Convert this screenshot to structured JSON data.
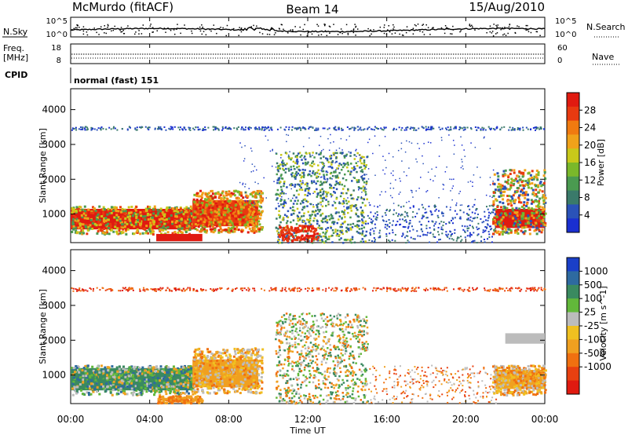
{
  "header": {
    "site": "McMurdo (fitACF)",
    "beam": "Beam 14",
    "date": "15/Aug/2010"
  },
  "top_panels": {
    "nsky_label": "N.Sky",
    "nsky_ticks": [
      "10^5",
      "10^0"
    ],
    "nsearch_label": "N.Search",
    "nsearch_ticks": [
      "10^5",
      "10^0"
    ],
    "freq_label_1": "Freq.",
    "freq_label_2": "[MHz]",
    "freq_ticks": [
      "18",
      "8"
    ],
    "nave_label": "Nave",
    "nave_ticks": [
      "60",
      "0"
    ],
    "cpid_label": "CPID",
    "cpid_text": "normal (fast) 151"
  },
  "colors": {
    "power_scale": [
      "#1a2fd0",
      "#2a52b8",
      "#3a7a6a",
      "#4a9a50",
      "#7ab82a",
      "#c8c81a",
      "#f0a21a",
      "#f07a10",
      "#e83a10",
      "#e01a10"
    ],
    "velocity_scale": [
      "#1a3fc8",
      "#2e6aa0",
      "#3a8a60",
      "#62b83a",
      "#bcbcbc",
      "#f0c020",
      "#f0a020",
      "#f07010",
      "#e84010",
      "#e01a10"
    ]
  },
  "chart_data": [
    {
      "type": "heatmap",
      "title": "Power",
      "xlabel": "",
      "ylabel": "Slant Range [km]",
      "xlim": [
        "00:00",
        "24:00"
      ],
      "x_ticks": [
        "00:00",
        "04:00",
        "08:00",
        "12:00",
        "16:00",
        "20:00",
        "00:00"
      ],
      "ylim": [
        180,
        4600
      ],
      "y_ticks": [
        1000,
        2000,
        3000,
        4000
      ],
      "colorbar": {
        "label": "Power [dB]",
        "ticks": [
          4,
          8,
          12,
          16,
          20,
          24,
          28
        ],
        "range": [
          0,
          32
        ]
      },
      "grid": false,
      "regions": [
        {
          "x": [
            "00:00",
            "06:10"
          ],
          "y": [
            520,
            1200
          ],
          "value": "~28 dB"
        },
        {
          "x": [
            "06:10",
            "09:30"
          ],
          "y": [
            620,
            1450
          ],
          "value": "~28 dB"
        },
        {
          "x": [
            "04:20",
            "06:40"
          ],
          "y": [
            200,
            450
          ],
          "value": "~28 dB"
        },
        {
          "x": [
            "10:20",
            "15:00"
          ],
          "y": [
            200,
            2800
          ],
          "value": "~8 dB"
        },
        {
          "x": [
            "21:30",
            "24:00"
          ],
          "y": [
            550,
            1200
          ],
          "value": "~28 dB"
        },
        {
          "x": [
            "00:00",
            "24:00"
          ],
          "y": [
            3450,
            3520
          ],
          "value": "~8 dB"
        }
      ]
    },
    {
      "type": "heatmap",
      "title": "Velocity",
      "xlabel": "Time UT",
      "ylabel": "Slant Range [km]",
      "xlim": [
        "00:00",
        "24:00"
      ],
      "x_ticks": [
        "00:00",
        "04:00",
        "08:00",
        "12:00",
        "16:00",
        "20:00",
        "00:00"
      ],
      "ylim": [
        180,
        4600
      ],
      "y_ticks": [
        1000,
        2000,
        3000,
        4000
      ],
      "colorbar": {
        "label": "Velocity [m s^-1]",
        "ticks": [
          1000,
          500,
          100,
          25,
          -25,
          -100,
          -500,
          -1000
        ]
      },
      "grid": false,
      "regions": [
        {
          "x": [
            "00:00",
            "06:10"
          ],
          "y": [
            520,
            1250
          ],
          "value": "~100 to 500 m/s"
        },
        {
          "x": [
            "06:10",
            "09:30"
          ],
          "y": [
            600,
            1500
          ],
          "value": "~-100 to -500 m/s"
        },
        {
          "x": [
            "10:20",
            "15:00"
          ],
          "y": [
            200,
            2800
          ],
          "value": "mixed"
        },
        {
          "x": [
            "21:30",
            "24:00"
          ],
          "y": [
            550,
            1200
          ],
          "value": "~-100 m/s"
        },
        {
          "x": [
            "22:00",
            "24:00"
          ],
          "y": [
            1900,
            2200
          ],
          "value": "~25 m/s"
        }
      ]
    }
  ]
}
